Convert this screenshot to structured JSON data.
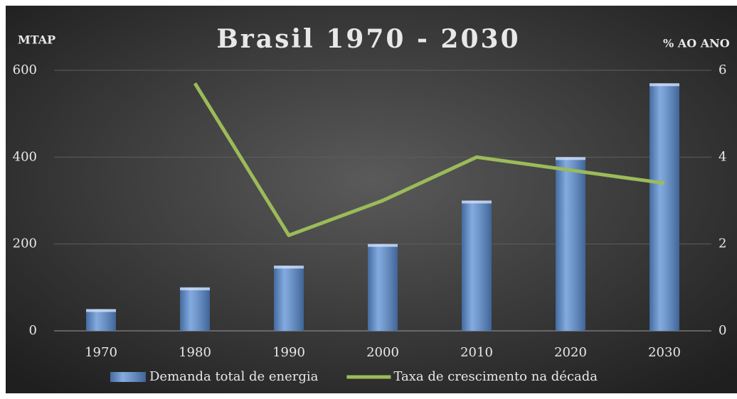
{
  "chart_data": {
    "type": "bar",
    "title": "Brasil 1970 - 2030",
    "y_label": "MTAP",
    "y2_label": "% AO ANO",
    "categories": [
      "1970",
      "1980",
      "1990",
      "2000",
      "2010",
      "2020",
      "2030"
    ],
    "series": [
      {
        "name": "Demanda total de energia",
        "type": "bar",
        "color": "#5b8fd6",
        "values": [
          50,
          100,
          150,
          200,
          300,
          400,
          570
        ]
      },
      {
        "name": "Taxa de crescimento na década",
        "type": "line",
        "axis": "y2",
        "color": "#9bbb59",
        "values": [
          null,
          5.7,
          2.2,
          3.0,
          4.0,
          3.7,
          3.4
        ]
      }
    ],
    "ylim": [
      0,
      600
    ],
    "yticks": [
      0,
      200,
      400,
      600
    ],
    "y2lim": [
      0,
      6
    ],
    "y2ticks": [
      0,
      2,
      4,
      6
    ],
    "grid": true,
    "legend": "bottom"
  }
}
